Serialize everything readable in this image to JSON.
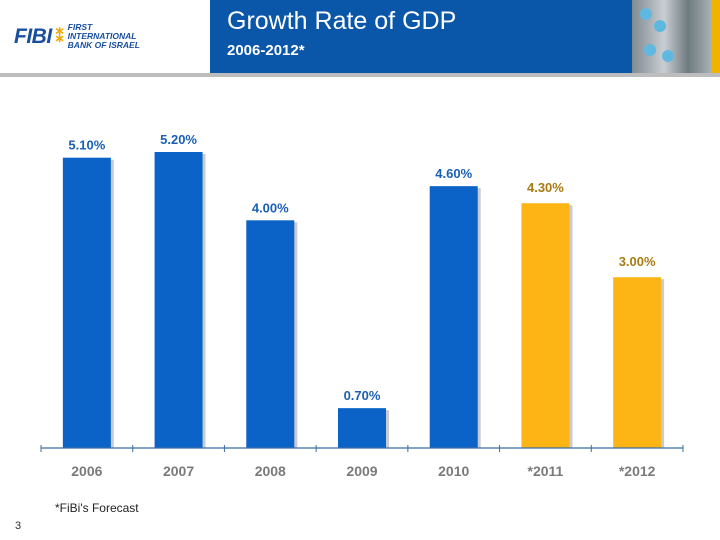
{
  "header": {
    "logo_text": "FIBI",
    "bank_name": "FIRST INTERNATIONAL BANK OF ISRAEL",
    "title": "Growth Rate of GDP",
    "subtitle": "2006-2012*"
  },
  "footer": {
    "note": "*FiBi's Forecast",
    "page_number": "3"
  },
  "colors": {
    "actual": "#0b63c8",
    "forecast": "#fdb515",
    "actual_label": "#1a5fb4",
    "forecast_label": "#a87a10",
    "banner": "#0a56a8"
  },
  "chart_data": {
    "type": "bar",
    "title": "Growth Rate of GDP",
    "subtitle": "2006-2012*",
    "categories": [
      "2006",
      "2007",
      "2008",
      "2009",
      "2010",
      "*2011",
      "*2012"
    ],
    "values": [
      5.1,
      5.2,
      4.0,
      0.7,
      4.6,
      4.3,
      3.0
    ],
    "data_labels": [
      "5.10%",
      "5.20%",
      "4.00%",
      "0.70%",
      "4.60%",
      "4.30%",
      "3.00%"
    ],
    "forecast": [
      false,
      false,
      false,
      false,
      false,
      true,
      true
    ],
    "ylim": [
      0,
      5.2
    ],
    "grid": false
  }
}
